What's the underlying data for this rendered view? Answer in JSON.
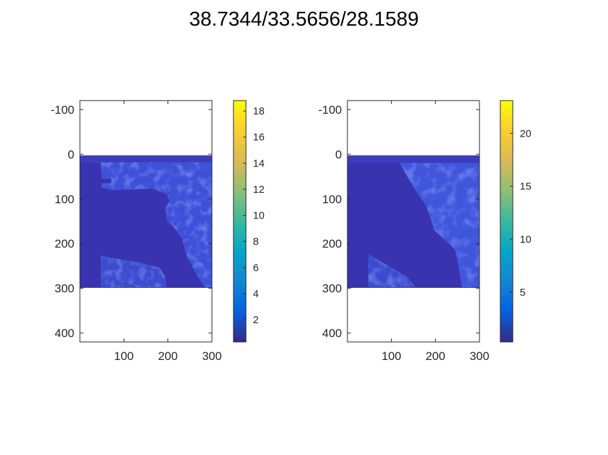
{
  "figure": {
    "title": "38.7344/33.5656/28.1589"
  },
  "chart_data": [
    {
      "type": "heatmap",
      "colormap": "parula",
      "xlim": [
        0,
        300
      ],
      "ylim": [
        420,
        -120
      ],
      "image_x_range": [
        0,
        300
      ],
      "image_y_range": [
        0,
        300
      ],
      "x_ticks": [
        100,
        200,
        300
      ],
      "x_tick_labels": [
        "100",
        "200",
        "300"
      ],
      "y_ticks": [
        -100,
        0,
        100,
        200,
        300,
        400
      ],
      "y_tick_labels": [
        "-100",
        "0",
        "100",
        "200",
        "300",
        "400"
      ],
      "colorbar": {
        "range": [
          0.3,
          18.8
        ],
        "ticks": [
          2,
          4,
          6,
          8,
          10,
          12,
          14,
          16,
          18
        ],
        "tick_labels": [
          "2",
          "4",
          "6",
          "8",
          "10",
          "12",
          "14",
          "16",
          "18"
        ]
      }
    },
    {
      "type": "heatmap",
      "colormap": "parula",
      "xlim": [
        0,
        300
      ],
      "ylim": [
        420,
        -120
      ],
      "image_x_range": [
        0,
        300
      ],
      "image_y_range": [
        0,
        300
      ],
      "x_ticks": [
        100,
        200,
        300
      ],
      "x_tick_labels": [
        "100",
        "200",
        "300"
      ],
      "y_ticks": [
        -100,
        0,
        100,
        200,
        300,
        400
      ],
      "y_tick_labels": [
        "-100",
        "0",
        "100",
        "200",
        "300",
        "400"
      ],
      "colorbar": {
        "range": [
          0.3,
          23.1
        ],
        "ticks": [
          5,
          10,
          15,
          20
        ],
        "tick_labels": [
          "5",
          "10",
          "15",
          "20"
        ]
      }
    }
  ]
}
